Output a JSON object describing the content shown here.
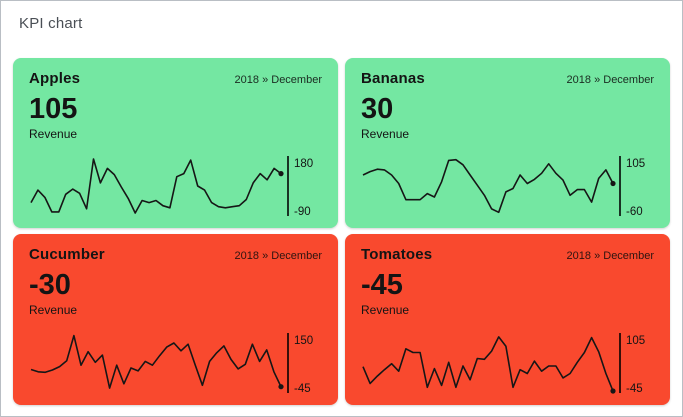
{
  "page": {
    "title": "KPI chart"
  },
  "colors": {
    "positive_tile": "#74e7a2",
    "negative_tile": "#f9492e",
    "line": "#161616",
    "axis": "rgba(0,0,0,0.78)",
    "page_border": "#b9bec4",
    "title_text": "#4a4f55"
  },
  "chart_data": [
    {
      "type": "line",
      "title": "Apples",
      "period": "2018 » December",
      "kpi_value": "105",
      "metric": "Revenue",
      "trend": "positive",
      "ylim": [
        -90,
        180
      ],
      "axis_max_label": "180",
      "axis_min_label": "-90",
      "legend": "none",
      "grid": false,
      "values": [
        -35,
        25,
        -10,
        -80,
        -80,
        5,
        30,
        10,
        -65,
        175,
        60,
        130,
        100,
        40,
        -15,
        -85,
        -25,
        -35,
        -25,
        -50,
        -60,
        90,
        105,
        170,
        45,
        25,
        -35,
        -55,
        -60,
        -55,
        -50,
        -20,
        60,
        105,
        75,
        130,
        105
      ]
    },
    {
      "type": "line",
      "title": "Bananas",
      "period": "2018 » December",
      "kpi_value": "30",
      "metric": "Revenue",
      "trend": "positive",
      "ylim": [
        -60,
        105
      ],
      "axis_max_label": "105",
      "axis_min_label": "-60",
      "legend": "none",
      "grid": false,
      "values": [
        55,
        65,
        72,
        70,
        55,
        30,
        -18,
        -18,
        -18,
        0,
        -10,
        35,
        98,
        100,
        85,
        55,
        25,
        -5,
        -45,
        -55,
        5,
        15,
        55,
        30,
        42,
        60,
        88,
        60,
        40,
        -5,
        12,
        12,
        -25,
        45,
        70,
        30
      ]
    },
    {
      "type": "line",
      "title": "Cucumber",
      "period": "2018 » December",
      "kpi_value": "-30",
      "metric": "Revenue",
      "trend": "negative",
      "ylim": [
        -45,
        150
      ],
      "axis_max_label": "150",
      "axis_min_label": "-45",
      "legend": "none",
      "grid": false,
      "values": [
        30,
        22,
        20,
        28,
        40,
        60,
        148,
        45,
        92,
        55,
        80,
        -35,
        45,
        -20,
        35,
        25,
        58,
        45,
        78,
        108,
        122,
        95,
        118,
        45,
        -25,
        58,
        88,
        112,
        65,
        32,
        48,
        118,
        58,
        98,
        22,
        -30
      ]
    },
    {
      "type": "line",
      "title": "Tomatoes",
      "period": "2018 » December",
      "kpi_value": "-45",
      "metric": "Revenue",
      "trend": "negative",
      "ylim": [
        -45,
        105
      ],
      "axis_max_label": "105",
      "axis_min_label": "-45",
      "legend": "none",
      "grid": false,
      "values": [
        20,
        -25,
        -5,
        12,
        28,
        8,
        68,
        58,
        58,
        -35,
        15,
        -30,
        32,
        -35,
        22,
        -15,
        42,
        40,
        62,
        100,
        75,
        -35,
        12,
        2,
        35,
        8,
        22,
        22,
        -10,
        2,
        32,
        58,
        98,
        60,
        2,
        -45
      ]
    }
  ]
}
